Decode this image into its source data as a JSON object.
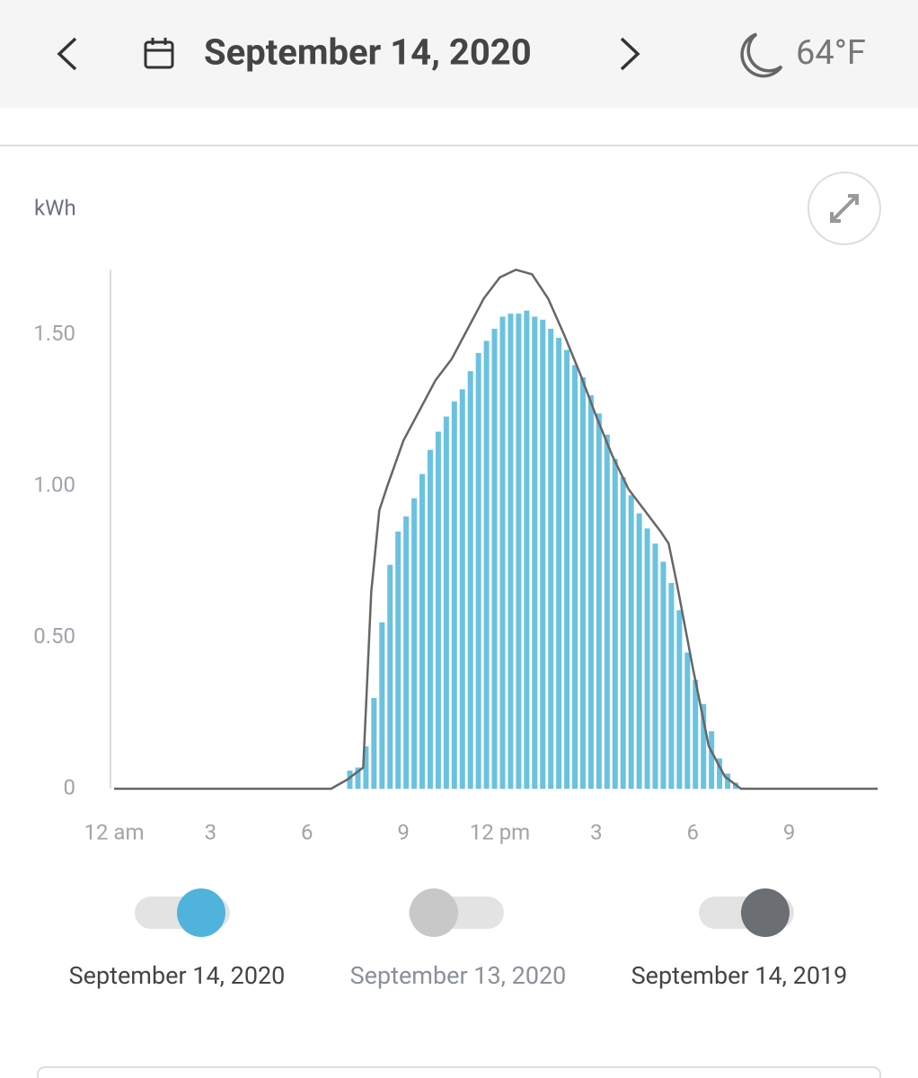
{
  "header": {
    "date": "September 14, 2020",
    "temperature": "64°F"
  },
  "chart_data": {
    "type": "bar",
    "y_label": "kWh",
    "xlim": [
      0,
      24
    ],
    "xticks": [
      {
        "value": 0,
        "label": "12 am"
      },
      3,
      6,
      9,
      {
        "value": 12,
        "label": "12 pm"
      },
      {
        "value": 15,
        "label": "3"
      },
      {
        "value": 18,
        "label": "6"
      },
      {
        "value": 21,
        "label": "9"
      }
    ],
    "ylim": [
      0,
      1.72
    ],
    "yticks": [
      0,
      {
        "value": 0.5,
        "label": "0.50"
      },
      {
        "value": 1,
        "label": "1.00"
      },
      {
        "value": 1.5,
        "label": "1.50"
      }
    ],
    "series": [
      {
        "name": "September 14, 2020",
        "color": "#4fb3dc",
        "mark_color": "#6ac2e0",
        "type": "bar",
        "enabled": true,
        "x": [
          7.25,
          7.5,
          7.75,
          8,
          8.25,
          8.5,
          8.75,
          9,
          9.25,
          9.5,
          9.75,
          10,
          10.25,
          10.5,
          10.75,
          11,
          11.25,
          11.5,
          11.75,
          12,
          12.25,
          12.5,
          12.75,
          13,
          13.25,
          13.5,
          13.75,
          14,
          14.25,
          14.5,
          14.75,
          15,
          15.25,
          15.5,
          15.75,
          16,
          16.25,
          16.5,
          16.75,
          17,
          17.25,
          17.5,
          17.75,
          18,
          18.25,
          18.5,
          18.75,
          19,
          19.25
        ],
        "values": [
          0.06,
          0.07,
          0.14,
          0.3,
          0.55,
          0.74,
          0.85,
          0.9,
          0.96,
          1.04,
          1.12,
          1.18,
          1.23,
          1.28,
          1.32,
          1.38,
          1.44,
          1.48,
          1.52,
          1.56,
          1.57,
          1.57,
          1.58,
          1.56,
          1.55,
          1.52,
          1.49,
          1.45,
          1.4,
          1.36,
          1.3,
          1.24,
          1.17,
          1.09,
          1.03,
          0.97,
          0.91,
          0.86,
          0.81,
          0.75,
          0.68,
          0.59,
          0.45,
          0.36,
          0.28,
          0.19,
          0.1,
          0.05,
          0.02
        ]
      },
      {
        "name": "September 13, 2020",
        "color": "#c8c8c8",
        "enabled": false
      },
      {
        "name": "September 14, 2019",
        "color": "#6b6e72",
        "mark_color": "#666666",
        "type": "line",
        "enabled": true,
        "x": [
          0,
          6.75,
          7.25,
          7.75,
          8,
          8.25,
          8.5,
          9,
          9.5,
          10,
          10.5,
          11,
          11.5,
          12,
          12.5,
          13,
          13.5,
          14,
          14.5,
          15,
          15.5,
          16,
          16.5,
          17,
          17.25,
          17.5,
          18,
          18.5,
          19,
          19.5,
          23.75
        ],
        "values": [
          0,
          0,
          0.03,
          0.07,
          0.65,
          0.92,
          1,
          1.15,
          1.25,
          1.35,
          1.42,
          1.52,
          1.62,
          1.69,
          1.715,
          1.7,
          1.62,
          1.5,
          1.37,
          1.23,
          1.1,
          0.99,
          0.92,
          0.85,
          0.81,
          0.68,
          0.4,
          0.14,
          0.04,
          0,
          0
        ]
      }
    ]
  }
}
